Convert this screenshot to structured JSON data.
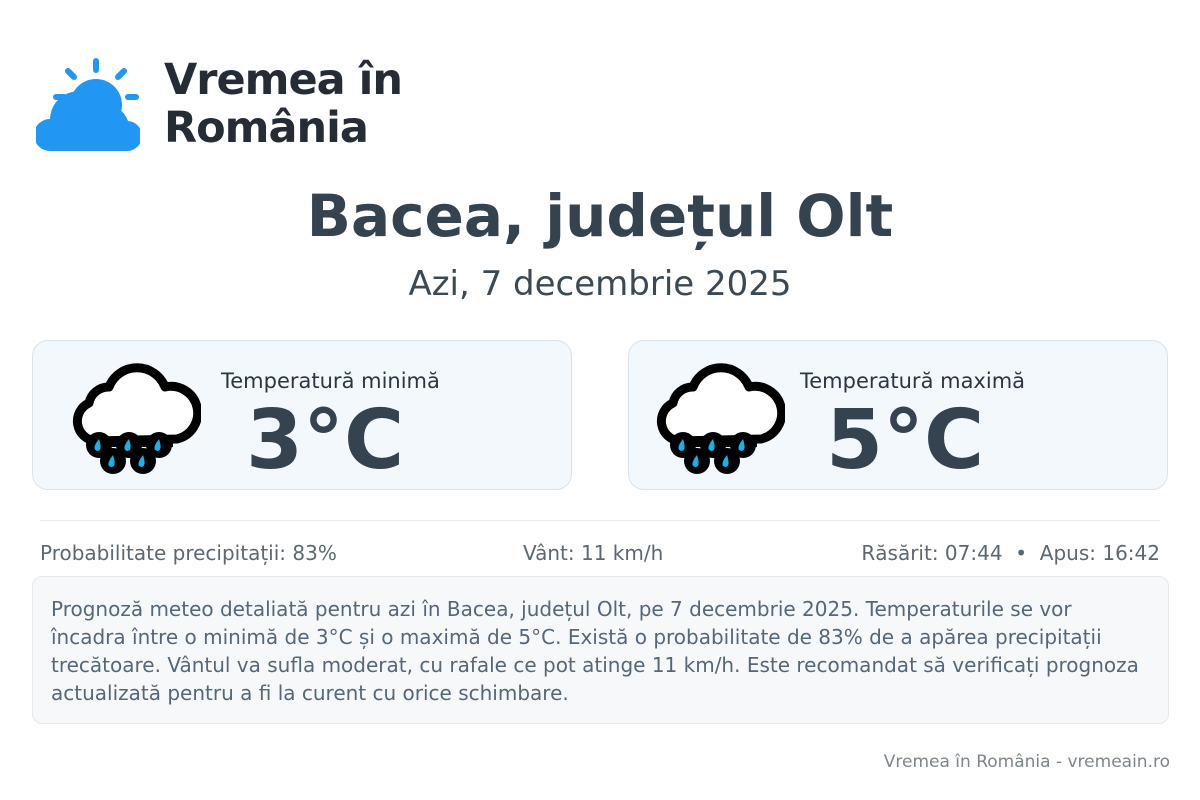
{
  "logo": {
    "line1": "Vremea în",
    "line2": "România",
    "color": "#2196f3"
  },
  "title": "Bacea, județul Olt",
  "date": "Azi, 7 decembrie 2025",
  "cards": [
    {
      "label": "Temperatură minimă",
      "value": "3°C",
      "icon": "rain-cloud-icon"
    },
    {
      "label": "Temperatură maximă",
      "value": "5°C",
      "icon": "rain-cloud-icon"
    }
  ],
  "stats": {
    "precip": "Probabilitate precipitații: 83%",
    "wind": "Vânt: 11 km/h",
    "sun": "Răsărit: 07:44  •  Apus: 16:42"
  },
  "description": "Prognoză meteo detaliată pentru azi în Bacea, județul Olt, pe 7 decembrie 2025. Temperaturile se vor încadra între o minimă de 3°C și o maximă de 5°C. Există o probabilitate de 83% de a apărea precipitații trecătoare. Vântul va sufla moderat, cu rafale ce pot atinge 11 km/h. Este recomandat să verificați prognoza actualizată pentru a fi la curent cu orice schimbare.",
  "footer": "Vremea în România - vremeain.ro"
}
